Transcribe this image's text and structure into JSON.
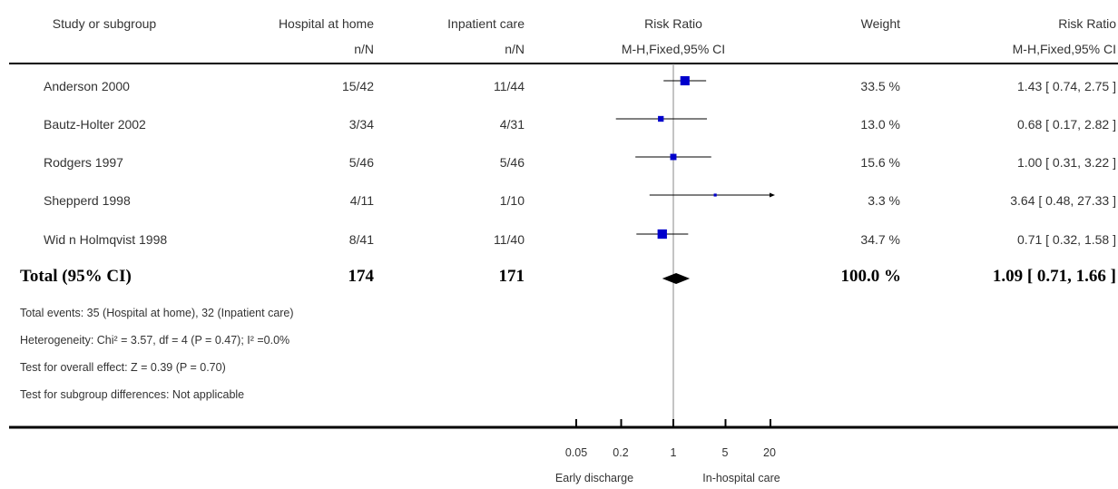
{
  "header": {
    "study": "Study or subgroup",
    "group1": "Hospital at home",
    "group2": "Inpatient care",
    "group1_sub": "n/N",
    "group2_sub": "n/N",
    "rr": "Risk Ratio",
    "rr_sub": "M-H,Fixed,95% CI",
    "weight": "Weight",
    "rr2": "Risk Ratio",
    "rr2_sub": "M-H,Fixed,95% CI"
  },
  "rows": [
    {
      "study": "Anderson 2000",
      "g1": "15/42",
      "g2": "11/44",
      "weight": "33.5 %",
      "ci": "1.43 [ 0.74, 2.75 ]"
    },
    {
      "study": "Bautz-Holter 2002",
      "g1": "3/34",
      "g2": "4/31",
      "weight": "13.0 %",
      "ci": "0.68 [ 0.17, 2.82 ]"
    },
    {
      "study": "Rodgers 1997",
      "g1": "5/46",
      "g2": "5/46",
      "weight": "15.6 %",
      "ci": "1.00 [ 0.31, 3.22 ]"
    },
    {
      "study": "Shepperd 1998",
      "g1": "4/11",
      "g2": "1/10",
      "weight": "3.3 %",
      "ci": "3.64 [ 0.48, 27.33 ]"
    },
    {
      "study": "Wid  n Holmqvist 1998",
      "g1": "8/41",
      "g2": "11/40",
      "weight": "34.7 %",
      "ci": "0.71 [ 0.32, 1.58 ]"
    }
  ],
  "total": {
    "label": "Total (95% CI)",
    "g1": "174",
    "g2": "171",
    "weight": "100.0 %",
    "ci": "1.09 [ 0.71, 1.66 ]"
  },
  "footnotes": [
    "Total events: 35 (Hospital at home), 32 (Inpatient care)",
    "Heterogeneity: Chi² = 3.57, df = 4 (P = 0.47); I² =0.0%",
    "Test for overall effect: Z = 0.39 (P = 0.70)",
    "Test for subgroup differences: Not applicable"
  ],
  "axis": {
    "ticks": [
      "0.05",
      "0.2",
      "1",
      "5",
      "20"
    ],
    "left_label": "Early discharge",
    "right_label": "In-hospital care"
  },
  "chart_data": {
    "type": "scatter",
    "scale": "log",
    "xlim": [
      0.05,
      20
    ],
    "ticks": [
      0.05,
      0.2,
      1,
      5,
      20
    ],
    "null_value": 1,
    "marker_color": "#0000cc",
    "studies": [
      {
        "name": "Anderson 2000",
        "rr": 1.43,
        "lo": 0.74,
        "hi": 2.75,
        "weight": 33.5
      },
      {
        "name": "Bautz-Holter 2002",
        "rr": 0.68,
        "lo": 0.17,
        "hi": 2.82,
        "weight": 13.0
      },
      {
        "name": "Rodgers 1997",
        "rr": 1.0,
        "lo": 0.31,
        "hi": 3.22,
        "weight": 15.6
      },
      {
        "name": "Shepperd 1998",
        "rr": 3.64,
        "lo": 0.48,
        "hi": 27.33,
        "weight": 3.3
      },
      {
        "name": "Wid  n Holmqvist 1998",
        "rr": 0.71,
        "lo": 0.32,
        "hi": 1.58,
        "weight": 34.7
      }
    ],
    "total": {
      "rr": 1.09,
      "lo": 0.71,
      "hi": 1.66,
      "weight": 100.0
    }
  }
}
